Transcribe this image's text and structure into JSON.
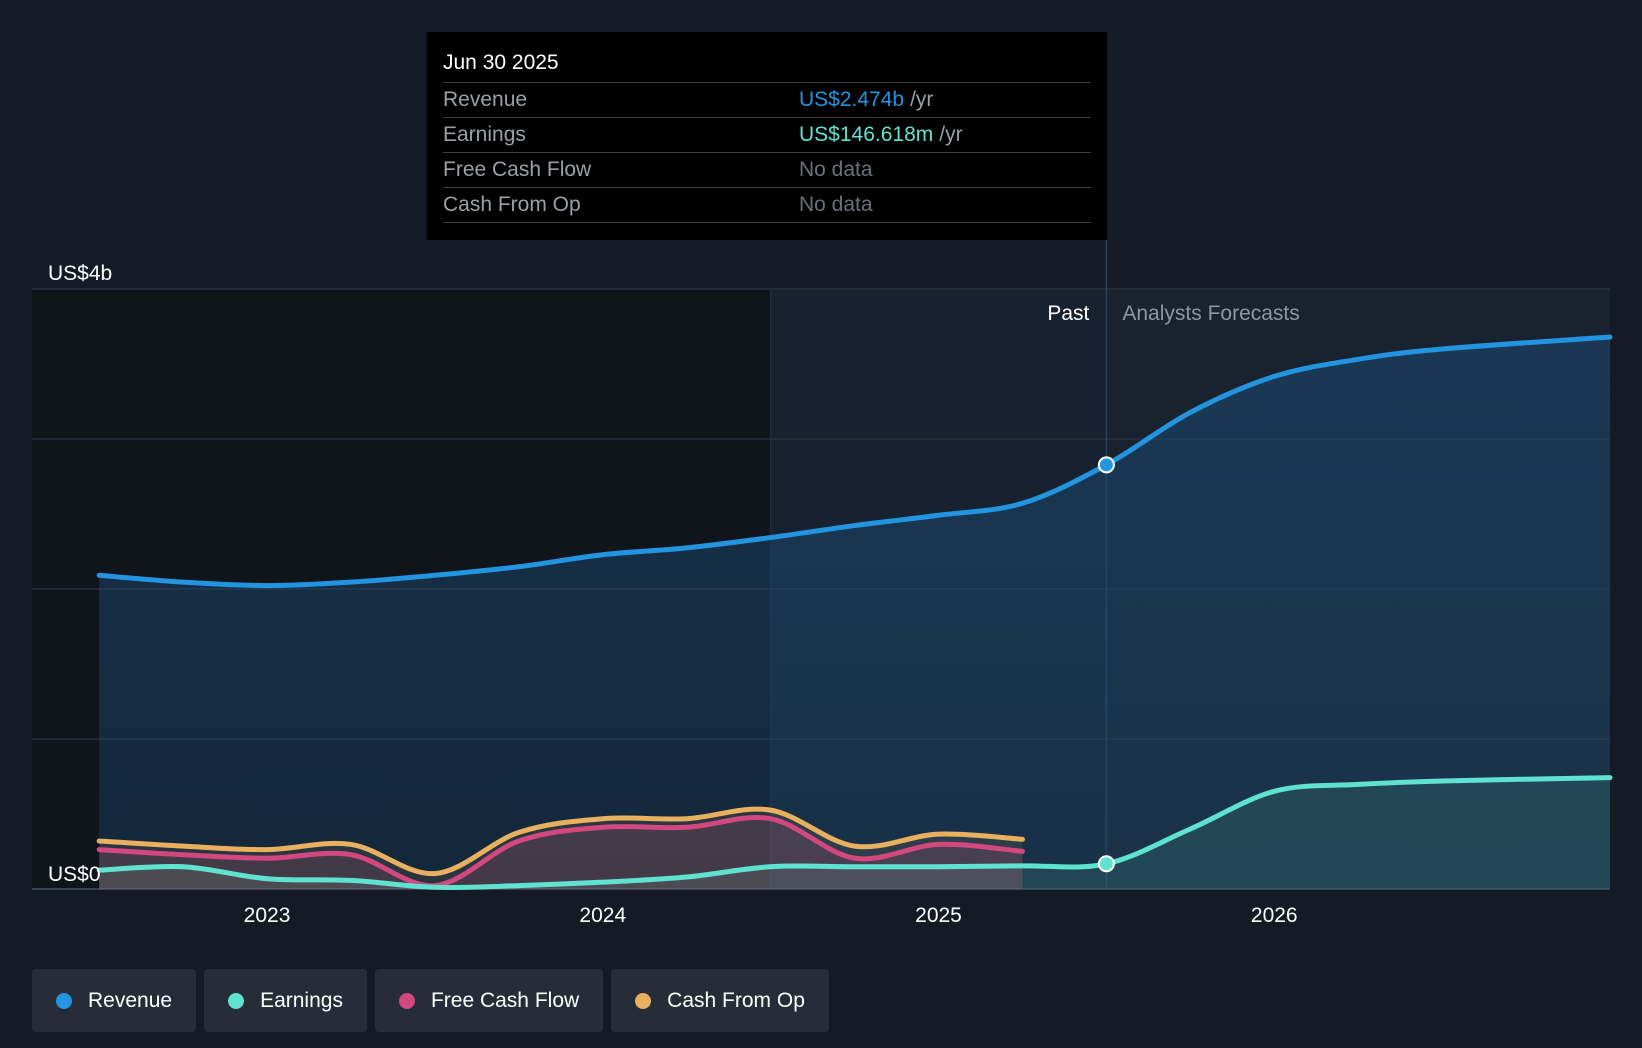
{
  "tooltip": {
    "date": "Jun 30 2025",
    "rows": [
      {
        "label": "Revenue",
        "value": "US$2.474b",
        "unit": "/yr",
        "color": "#2394df"
      },
      {
        "label": "Earnings",
        "value": "US$146.618m",
        "unit": "/yr",
        "color": "#5fe3d0"
      },
      {
        "label": "Free Cash Flow",
        "value": "No data",
        "unit": "",
        "color": "#6b7079"
      },
      {
        "label": "Cash From Op",
        "value": "No data",
        "unit": "",
        "color": "#6b7079"
      }
    ]
  },
  "labels": {
    "past": "Past",
    "forecast": "Analysts Forecasts"
  },
  "legend": [
    {
      "label": "Revenue",
      "color": "#2394df"
    },
    {
      "label": "Earnings",
      "color": "#5fe3d0"
    },
    {
      "label": "Free Cash Flow",
      "color": "#d2487f"
    },
    {
      "label": "Cash From Op",
      "color": "#e9b05f"
    }
  ],
  "chart_data": {
    "type": "line",
    "ylim": [
      0,
      3.5
    ],
    "y_unit": "US$ billions",
    "y_tick_labels": [
      {
        "value": 3.5,
        "label": "US$4b"
      },
      {
        "value": 0,
        "label": "US$0"
      }
    ],
    "x_tick_labels": [
      {
        "value": 2023.0,
        "label": "2023"
      },
      {
        "value": 2024.0,
        "label": "2024"
      },
      {
        "value": 2025.0,
        "label": "2025"
      },
      {
        "value": 2026.0,
        "label": "2026"
      }
    ],
    "xlim": [
      2022.3,
      2027.0
    ],
    "past_end": 2025.5,
    "highlight_start": 2024.5,
    "grid": true,
    "legend_position": "bottom-left",
    "series": [
      {
        "name": "Revenue",
        "color": "#2394df",
        "x": [
          2022.5,
          2022.75,
          2023.0,
          2023.25,
          2023.5,
          2023.75,
          2024.0,
          2024.25,
          2024.5,
          2024.75,
          2025.0,
          2025.25,
          2025.5,
          2025.75,
          2026.0,
          2026.25,
          2026.5,
          2027.0
        ],
        "y": [
          1.83,
          1.79,
          1.77,
          1.79,
          1.83,
          1.88,
          1.95,
          1.99,
          2.05,
          2.12,
          2.18,
          2.25,
          2.474,
          2.78,
          2.99,
          3.09,
          3.15,
          3.22
        ]
      },
      {
        "name": "Earnings",
        "color": "#5fe3d0",
        "x": [
          2022.5,
          2022.75,
          2023.0,
          2023.25,
          2023.5,
          2023.75,
          2024.0,
          2024.25,
          2024.5,
          2024.75,
          2025.0,
          2025.25,
          2025.5,
          2025.75,
          2026.0,
          2026.25,
          2026.5,
          2027.0
        ],
        "y": [
          0.11,
          0.13,
          0.06,
          0.05,
          0.01,
          0.02,
          0.04,
          0.07,
          0.13,
          0.13,
          0.13,
          0.135,
          0.147,
          0.35,
          0.57,
          0.61,
          0.63,
          0.65
        ]
      },
      {
        "name": "Free Cash Flow",
        "color": "#d2487f",
        "x": [
          2022.5,
          2022.75,
          2023.0,
          2023.25,
          2023.5,
          2023.75,
          2024.0,
          2024.25,
          2024.5,
          2024.75,
          2025.0,
          2025.25
        ],
        "y": [
          0.23,
          0.2,
          0.18,
          0.2,
          0.02,
          0.28,
          0.36,
          0.36,
          0.41,
          0.18,
          0.26,
          0.22
        ]
      },
      {
        "name": "Cash From Op",
        "color": "#e9b05f",
        "x": [
          2022.5,
          2022.75,
          2023.0,
          2023.25,
          2023.5,
          2023.75,
          2024.0,
          2024.25,
          2024.5,
          2024.75,
          2025.0,
          2025.25
        ],
        "y": [
          0.28,
          0.25,
          0.23,
          0.26,
          0.09,
          0.33,
          0.41,
          0.41,
          0.46,
          0.25,
          0.32,
          0.29
        ]
      }
    ]
  }
}
